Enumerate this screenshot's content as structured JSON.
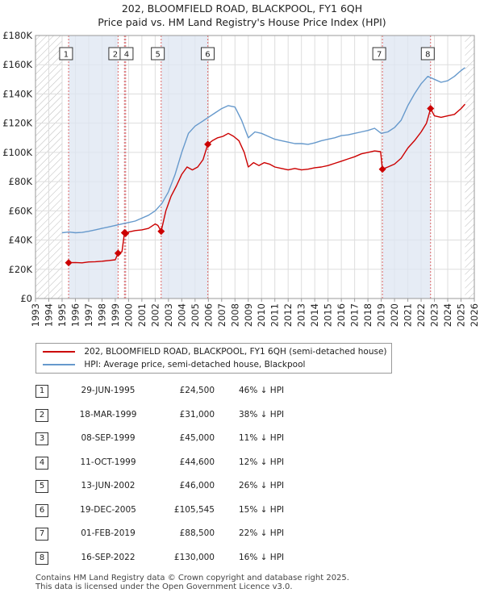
{
  "title_line1": "202, BLOOMFIELD ROAD, BLACKPOOL, FY1 6QH",
  "title_line2": "Price paid vs. HM Land Registry's House Price Index (HPI)",
  "chart_data": {
    "type": "line",
    "title": "202, BLOOMFIELD ROAD, BLACKPOOL, FY1 6QH",
    "subtitle": "Price paid vs. HM Land Registry's House Price Index (HPI)",
    "xlabel": "",
    "ylabel": "",
    "xlim": [
      1993,
      2026
    ],
    "ylim": [
      0,
      180000
    ],
    "x_ticks": [
      1993,
      1994,
      1995,
      1996,
      1997,
      1998,
      1999,
      2000,
      2001,
      2002,
      2003,
      2004,
      2005,
      2006,
      2007,
      2008,
      2009,
      2010,
      2011,
      2012,
      2013,
      2014,
      2015,
      2016,
      2017,
      2018,
      2019,
      2020,
      2021,
      2022,
      2023,
      2024,
      2025,
      2026
    ],
    "y_ticks": [
      {
        "value": 0,
        "label": "£0"
      },
      {
        "value": 20000,
        "label": "£20K"
      },
      {
        "value": 40000,
        "label": "£40K"
      },
      {
        "value": 60000,
        "label": "£60K"
      },
      {
        "value": 80000,
        "label": "£80K"
      },
      {
        "value": 100000,
        "label": "£100K"
      },
      {
        "value": 120000,
        "label": "£120K"
      },
      {
        "value": 140000,
        "label": "£140K"
      },
      {
        "value": 160000,
        "label": "£160K"
      },
      {
        "value": 180000,
        "label": "£180K"
      }
    ],
    "data_range": [
      1995.0,
      2025.3
    ],
    "grid": true,
    "legend_position": "bottom",
    "series": [
      {
        "name": "202, BLOOMFIELD ROAD, BLACKPOOL, FY1 6QH (semi-detached house)",
        "color": "#cc0000",
        "x": [
          1995.49,
          1996.0,
          1996.5,
          1997.0,
          1997.5,
          1998.0,
          1998.5,
          1999.0,
          1999.21,
          1999.5,
          1999.69,
          1999.78,
          2000.0,
          2000.5,
          2001.0,
          2001.5,
          2002.0,
          2002.2,
          2002.45,
          2002.8,
          2003.2,
          2003.6,
          2004.0,
          2004.4,
          2004.8,
          2005.2,
          2005.6,
          2005.96,
          2006.3,
          2006.7,
          2007.1,
          2007.5,
          2007.9,
          2008.3,
          2008.7,
          2009.0,
          2009.4,
          2009.8,
          2010.2,
          2010.6,
          2011.0,
          2011.5,
          2012.0,
          2012.5,
          2013.0,
          2013.5,
          2014.0,
          2014.5,
          2015.0,
          2015.5,
          2016.0,
          2016.5,
          2017.0,
          2017.5,
          2018.0,
          2018.5,
          2018.95,
          2019.09,
          2019.5,
          2020.0,
          2020.5,
          2021.0,
          2021.5,
          2022.0,
          2022.4,
          2022.71,
          2023.0,
          2023.5,
          2024.0,
          2024.5,
          2025.0,
          2025.3
        ],
        "values": [
          24500,
          24600,
          24400,
          25000,
          25200,
          25500,
          26000,
          26500,
          31000,
          32000,
          45000,
          44600,
          45500,
          46500,
          47000,
          48000,
          51000,
          50000,
          46000,
          60000,
          70000,
          77000,
          85000,
          90000,
          88000,
          90000,
          95000,
          105545,
          108000,
          110000,
          111000,
          113000,
          111000,
          108000,
          100000,
          90000,
          93000,
          91000,
          93000,
          92000,
          90000,
          89000,
          88000,
          89000,
          88000,
          88500,
          89500,
          90000,
          91000,
          92500,
          94000,
          95500,
          97000,
          99000,
          100000,
          101000,
          100500,
          88500,
          90000,
          92000,
          96000,
          103000,
          108000,
          114000,
          120000,
          130000,
          125000,
          124000,
          125000,
          126000,
          130000,
          133000
        ]
      },
      {
        "name": "HPI: Average price, semi-detached house, Blackpool",
        "color": "#6699cc",
        "x": [
          1995.0,
          1995.5,
          1996.0,
          1996.5,
          1997.0,
          1997.5,
          1998.0,
          1998.5,
          1999.0,
          1999.5,
          2000.0,
          2000.5,
          2001.0,
          2001.5,
          2002.0,
          2002.5,
          2003.0,
          2003.5,
          2004.0,
          2004.5,
          2005.0,
          2005.5,
          2006.0,
          2006.5,
          2007.0,
          2007.5,
          2008.0,
          2008.5,
          2009.0,
          2009.5,
          2010.0,
          2010.5,
          2011.0,
          2011.5,
          2012.0,
          2012.5,
          2013.0,
          2013.5,
          2014.0,
          2014.5,
          2015.0,
          2015.5,
          2016.0,
          2016.5,
          2017.0,
          2017.5,
          2018.0,
          2018.5,
          2019.0,
          2019.5,
          2020.0,
          2020.5,
          2021.0,
          2021.5,
          2022.0,
          2022.5,
          2023.0,
          2023.5,
          2024.0,
          2024.5,
          2025.0,
          2025.3
        ],
        "values": [
          45000,
          45500,
          45000,
          45200,
          46000,
          47000,
          48000,
          49000,
          50000,
          51000,
          52000,
          53000,
          55000,
          57000,
          60000,
          65000,
          73000,
          85000,
          100000,
          113000,
          118000,
          121000,
          124000,
          127000,
          130000,
          132000,
          131000,
          122000,
          110000,
          114000,
          113000,
          111000,
          109000,
          108000,
          107000,
          106000,
          106000,
          105500,
          106500,
          108000,
          109000,
          110000,
          111500,
          112000,
          113000,
          114000,
          115000,
          116500,
          113000,
          114000,
          117000,
          122000,
          132000,
          140000,
          147000,
          152000,
          150000,
          148000,
          149000,
          152000,
          156000,
          158000
        ]
      }
    ],
    "sales": [
      {
        "id": "1",
        "x": 1995.49,
        "value": 24500
      },
      {
        "id": "2",
        "x": 1999.21,
        "value": 31000
      },
      {
        "id": "3",
        "x": 1999.69,
        "value": 45000
      },
      {
        "id": "4",
        "x": 1999.78,
        "value": 44600
      },
      {
        "id": "5",
        "x": 2002.45,
        "value": 46000
      },
      {
        "id": "6",
        "x": 2005.96,
        "value": 105545
      },
      {
        "id": "7",
        "x": 2019.09,
        "value": 88500
      },
      {
        "id": "8",
        "x": 2022.71,
        "value": 130000
      }
    ],
    "marker_labels": [
      {
        "id": "1",
        "x": 1995.3
      },
      {
        "id": "2",
        "x": 1999.0
      },
      {
        "id": "4",
        "x": 1999.85
      },
      {
        "id": "5",
        "x": 2002.2
      },
      {
        "id": "6",
        "x": 2005.95
      },
      {
        "id": "7",
        "x": 2018.85
      },
      {
        "id": "8",
        "x": 2022.5
      }
    ],
    "colors": {
      "property": "#cc0000",
      "hpi": "#6699cc",
      "shade": "#dde6f2",
      "hatch": "#bbbbbb"
    }
  },
  "legend": {
    "property_label": "202, BLOOMFIELD ROAD, BLACKPOOL, FY1 6QH (semi-detached house)",
    "hpi_label": "HPI: Average price, semi-detached house, Blackpool"
  },
  "transactions": [
    {
      "num": "1",
      "date": "29-JUN-1995",
      "price": "£24,500",
      "hpi": "46% ↓ HPI"
    },
    {
      "num": "2",
      "date": "18-MAR-1999",
      "price": "£31,000",
      "hpi": "38% ↓ HPI"
    },
    {
      "num": "3",
      "date": "08-SEP-1999",
      "price": "£45,000",
      "hpi": "11% ↓ HPI"
    },
    {
      "num": "4",
      "date": "11-OCT-1999",
      "price": "£44,600",
      "hpi": "12% ↓ HPI"
    },
    {
      "num": "5",
      "date": "13-JUN-2002",
      "price": "£46,000",
      "hpi": "26% ↓ HPI"
    },
    {
      "num": "6",
      "date": "19-DEC-2005",
      "price": "£105,545",
      "hpi": "15% ↓ HPI"
    },
    {
      "num": "7",
      "date": "01-FEB-2019",
      "price": "£88,500",
      "hpi": "22% ↓ HPI"
    },
    {
      "num": "8",
      "date": "16-SEP-2022",
      "price": "£130,000",
      "hpi": "16% ↓ HPI"
    }
  ],
  "footer": {
    "line1": "Contains HM Land Registry data © Crown copyright and database right 2025.",
    "line2": "This data is licensed under the Open Government Licence v3.0."
  }
}
